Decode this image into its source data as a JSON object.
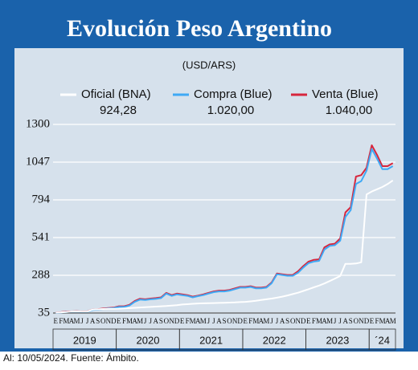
{
  "chart_data": {
    "type": "line",
    "title": "Evolución Peso Argentino",
    "subtitle": "(USD/ARS)",
    "source": "Al: 10/05/2024. Fuente: Ámbito.",
    "categories": [
      "E",
      "F",
      "M",
      "A",
      "M",
      "J",
      "J",
      "A",
      "S",
      "O",
      "N",
      "D",
      "E",
      "F",
      "M",
      "A",
      "M",
      "J",
      "J",
      "A",
      "S",
      "O",
      "N",
      "D",
      "E",
      "F",
      "M",
      "A",
      "M",
      "J",
      "J",
      "A",
      "S",
      "O",
      "N",
      "D",
      "E",
      "F",
      "M",
      "A",
      "M",
      "J",
      "J",
      "A",
      "S",
      "O",
      "N",
      "D",
      "E",
      "F",
      "M",
      "A",
      "M",
      "J",
      "J",
      "A",
      "S",
      "O",
      "N",
      "D",
      "E",
      "F",
      "M",
      "A",
      "M"
    ],
    "years": [
      "2019",
      "2020",
      "2021",
      "2022",
      "2023",
      "´24"
    ],
    "ylim": [
      35,
      1300
    ],
    "yticks": [
      35,
      288,
      541,
      794,
      1047,
      1300
    ],
    "grid": true,
    "series": [
      {
        "name": "Oficial (BNA)",
        "color": "#ffffff",
        "legend_value": "924,28",
        "values": [
          39,
          40,
          42,
          45,
          46,
          44,
          44,
          58,
          60,
          62,
          63,
          63,
          64,
          66,
          68,
          70,
          72,
          74,
          76,
          78,
          80,
          82,
          85,
          88,
          92,
          94,
          97,
          99,
          100,
          101,
          102,
          103,
          104,
          105,
          106,
          108,
          110,
          113,
          117,
          122,
          127,
          132,
          138,
          145,
          153,
          162,
          171,
          183,
          195,
          207,
          219,
          233,
          249,
          266,
          283,
          365,
          365,
          367,
          375,
          830,
          850,
          865,
          880,
          900,
          924
        ]
      },
      {
        "name": "Compra (Blue)",
        "color": "#3fa9f5",
        "legend_value": "1.020,00",
        "values": [
          38,
          39,
          42,
          44,
          45,
          43,
          43,
          55,
          58,
          62,
          66,
          68,
          76,
          76,
          85,
          110,
          125,
          122,
          127,
          130,
          135,
          165,
          150,
          160,
          155,
          150,
          140,
          148,
          155,
          165,
          175,
          180,
          180,
          185,
          195,
          205,
          205,
          210,
          200,
          200,
          205,
          235,
          295,
          290,
          285,
          285,
          305,
          340,
          370,
          380,
          385,
          460,
          485,
          490,
          520,
          680,
          725,
          900,
          920,
          990,
          1135,
          1070,
          1000,
          1000,
          1020
        ]
      },
      {
        "name": "Venta (Blue)",
        "color": "#d7263d",
        "legend_value": "1.040,00",
        "values": [
          40,
          41,
          44,
          46,
          47,
          45,
          45,
          58,
          61,
          65,
          69,
          71,
          80,
          80,
          90,
          116,
          131,
          127,
          132,
          135,
          140,
          170,
          155,
          165,
          160,
          155,
          145,
          152,
          160,
          170,
          180,
          185,
          185,
          190,
          200,
          210,
          210,
          215,
          205,
          205,
          210,
          240,
          300,
          295,
          290,
          290,
          315,
          350,
          380,
          392,
          395,
          475,
          495,
          500,
          535,
          710,
          745,
          950,
          960,
          1010,
          1160,
          1095,
          1020,
          1020,
          1040
        ]
      }
    ]
  }
}
